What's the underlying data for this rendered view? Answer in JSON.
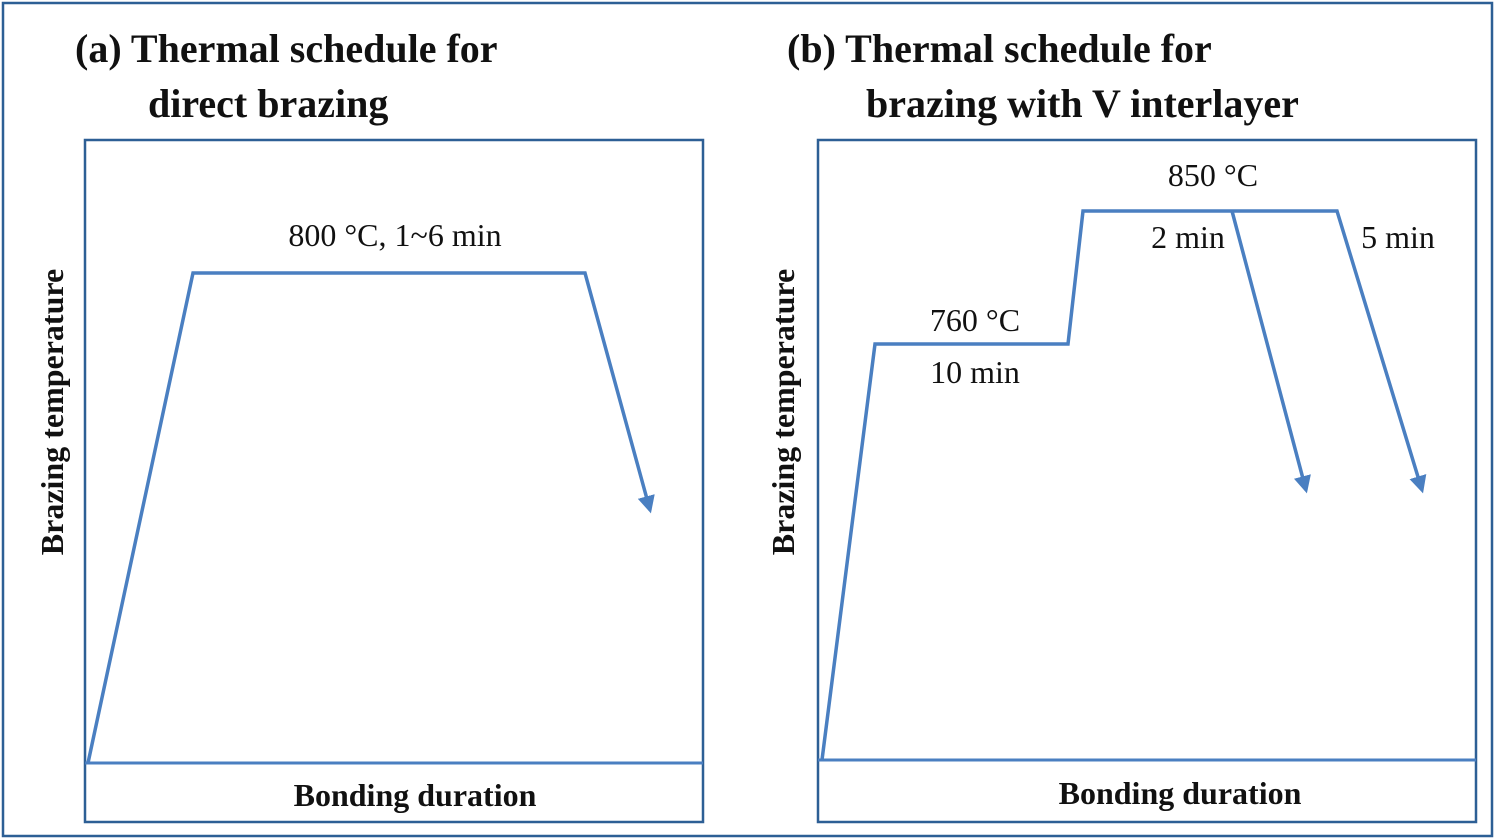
{
  "panels": [
    {
      "title_lines": [
        "(a) Thermal schedule for",
        "direct brazing"
      ],
      "y_label": "Brazing temperature",
      "x_label": "Bonding duration",
      "annotations": [
        "800 °C, 1~6 min"
      ]
    },
    {
      "title_lines": [
        "(b) Thermal schedule for",
        "brazing with V interlayer"
      ],
      "y_label": "Brazing temperature",
      "x_label": "Bonding duration",
      "annotations": [
        "850 °C",
        "2 min",
        "5 min",
        "760 °C",
        "10 min"
      ]
    }
  ]
}
